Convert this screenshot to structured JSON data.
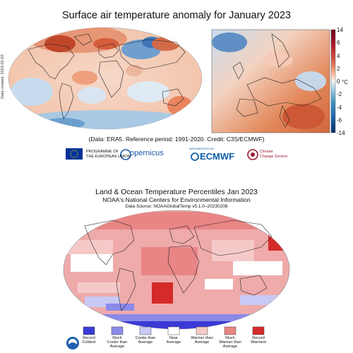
{
  "top_map": {
    "title": "Surface air temperature anomaly for January 2023",
    "side_label": "Data created: 2023-02-03",
    "credit": "(Data: ERA5.  Reference period: 1991-2020.  Credit: C3S/ECMWF)",
    "colorbar": {
      "unit": "°C",
      "ticks": [
        "14",
        "6",
        "4",
        "2",
        "0",
        "-2",
        "-4",
        "-6",
        "-14"
      ],
      "colors": [
        "#08306b",
        "#2166ac",
        "#4393c3",
        "#92c5de",
        "#d1e5f0",
        "#f7f7f7",
        "#fddbc7",
        "#f4a582",
        "#d6604d",
        "#b2182b",
        "#67001f"
      ]
    }
  },
  "logos": {
    "eu": "PROGRAMME OF\nTHE EUROPEAN UNION",
    "copernicus": "opernicus",
    "ecmwf_small": "IMPLEMENTED BY",
    "ecmwf": "ECMWF",
    "c3s": "Climate\nChange Service"
  },
  "bottom_map": {
    "title": "Land & Ocean Temperature Percentiles Jan 2023",
    "subtitle": "NOAA's National Centers for Environmental Information",
    "source": "Data Source: NOAAGlobalTemp v5.1.0–20230208",
    "legend": [
      {
        "label": "Record\nColdest",
        "color": "#3a3ad6"
      },
      {
        "label": "Much\nCooler than\nAverage",
        "color": "#8a8ae8"
      },
      {
        "label": "Cooler than\nAverage",
        "color": "#c9c9f5"
      },
      {
        "label": "Near\nAverage",
        "color": "#ffffff"
      },
      {
        "label": "Warmer than\nAverage",
        "color": "#f6c9c9"
      },
      {
        "label": "Much\nWarmer than\nAverage",
        "color": "#e98585"
      },
      {
        "label": "Record\nWarmest",
        "color": "#d42a2a"
      }
    ]
  }
}
